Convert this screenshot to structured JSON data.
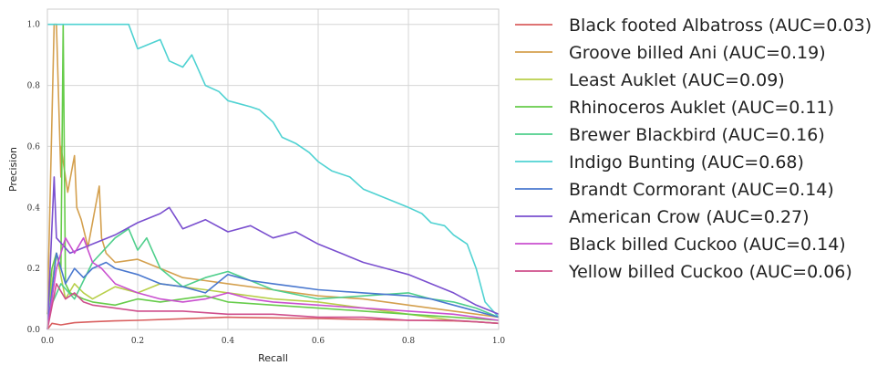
{
  "chart_data": {
    "type": "line",
    "xlabel": "Recall",
    "ylabel": "Precision",
    "xlim": [
      0.0,
      1.0
    ],
    "ylim": [
      0.0,
      1.05
    ],
    "xticks": [
      "0.0",
      "0.2",
      "0.4",
      "0.6",
      "0.8",
      "1.0"
    ],
    "yticks": [
      "0.0",
      "0.2",
      "0.4",
      "0.6",
      "0.8",
      "1.0"
    ],
    "grid": true,
    "legend_position": "outside-right",
    "series": [
      {
        "name": "Black footed Albatross (AUC=0.03)",
        "color": "#d95f5f",
        "x": [
          0.0,
          0.01,
          0.03,
          0.06,
          0.1,
          0.15,
          0.2,
          0.3,
          0.4,
          0.5,
          0.6,
          0.7,
          0.8,
          0.9,
          0.95,
          1.0
        ],
        "y": [
          0.0,
          0.02,
          0.015,
          0.022,
          0.025,
          0.028,
          0.03,
          0.035,
          0.04,
          0.038,
          0.036,
          0.033,
          0.03,
          0.028,
          0.025,
          0.02
        ]
      },
      {
        "name": "Groove billed Ani (AUC=0.19)",
        "color": "#d4a04e",
        "x": [
          0.0,
          0.015,
          0.02,
          0.03,
          0.03,
          0.045,
          0.06,
          0.065,
          0.075,
          0.09,
          0.115,
          0.12,
          0.13,
          0.15,
          0.2,
          0.25,
          0.3,
          0.35,
          0.4,
          0.5,
          0.6,
          0.7,
          0.8,
          0.9,
          1.0
        ],
        "y": [
          0.05,
          1.0,
          1.0,
          0.5,
          0.6,
          0.45,
          0.57,
          0.4,
          0.36,
          0.27,
          0.47,
          0.3,
          0.25,
          0.22,
          0.23,
          0.2,
          0.17,
          0.16,
          0.15,
          0.13,
          0.11,
          0.1,
          0.08,
          0.06,
          0.04
        ]
      },
      {
        "name": "Least Auklet (AUC=0.09)",
        "color": "#b8cf4a",
        "x": [
          0.0,
          0.02,
          0.04,
          0.06,
          0.08,
          0.1,
          0.15,
          0.2,
          0.25,
          0.3,
          0.35,
          0.4,
          0.5,
          0.6,
          0.7,
          0.8,
          0.9,
          1.0
        ],
        "y": [
          0.05,
          0.25,
          0.1,
          0.15,
          0.12,
          0.1,
          0.14,
          0.12,
          0.15,
          0.14,
          0.13,
          0.12,
          0.1,
          0.09,
          0.07,
          0.05,
          0.03,
          0.02
        ]
      },
      {
        "name": "Rhinoceros Auklet (AUC=0.11)",
        "color": "#66cc4a",
        "x": [
          0.0,
          0.01,
          0.02,
          0.03,
          0.035,
          0.04,
          0.05,
          0.08,
          0.1,
          0.15,
          0.2,
          0.25,
          0.3,
          0.35,
          0.4,
          0.5,
          0.6,
          0.7,
          0.8,
          0.9,
          1.0
        ],
        "y": [
          0.05,
          0.2,
          0.25,
          0.2,
          1.0,
          0.15,
          0.12,
          0.1,
          0.09,
          0.08,
          0.1,
          0.09,
          0.1,
          0.11,
          0.09,
          0.08,
          0.07,
          0.06,
          0.05,
          0.04,
          0.03
        ]
      },
      {
        "name": "Brewer Blackbird (AUC=0.16)",
        "color": "#4fcf8c",
        "x": [
          0.0,
          0.03,
          0.06,
          0.1,
          0.15,
          0.18,
          0.2,
          0.22,
          0.25,
          0.3,
          0.35,
          0.4,
          0.5,
          0.6,
          0.7,
          0.8,
          0.85,
          0.9,
          0.95,
          1.0
        ],
        "y": [
          0.05,
          0.15,
          0.1,
          0.22,
          0.3,
          0.33,
          0.26,
          0.3,
          0.2,
          0.14,
          0.17,
          0.19,
          0.13,
          0.1,
          0.11,
          0.12,
          0.1,
          0.09,
          0.07,
          0.04
        ]
      },
      {
        "name": "Indigo Bunting (AUC=0.68)",
        "color": "#4fd2d2",
        "x": [
          0.0,
          0.01,
          0.18,
          0.2,
          0.25,
          0.27,
          0.3,
          0.32,
          0.35,
          0.38,
          0.4,
          0.45,
          0.47,
          0.5,
          0.52,
          0.55,
          0.58,
          0.6,
          0.63,
          0.67,
          0.7,
          0.75,
          0.8,
          0.83,
          0.85,
          0.88,
          0.9,
          0.93,
          0.95,
          0.97,
          1.0
        ],
        "y": [
          1.0,
          1.0,
          1.0,
          0.92,
          0.95,
          0.88,
          0.86,
          0.9,
          0.8,
          0.78,
          0.75,
          0.73,
          0.72,
          0.68,
          0.63,
          0.61,
          0.58,
          0.55,
          0.52,
          0.5,
          0.46,
          0.43,
          0.4,
          0.38,
          0.35,
          0.34,
          0.31,
          0.28,
          0.2,
          0.09,
          0.04
        ]
      },
      {
        "name": "Brandt Cormorant (AUC=0.14)",
        "color": "#4a78cf",
        "x": [
          0.0,
          0.02,
          0.04,
          0.06,
          0.08,
          0.1,
          0.13,
          0.15,
          0.2,
          0.25,
          0.3,
          0.35,
          0.4,
          0.45,
          0.5,
          0.55,
          0.6,
          0.7,
          0.8,
          0.85,
          0.9,
          1.0
        ],
        "y": [
          0.0,
          0.25,
          0.15,
          0.2,
          0.17,
          0.2,
          0.22,
          0.2,
          0.18,
          0.15,
          0.14,
          0.12,
          0.18,
          0.16,
          0.15,
          0.14,
          0.13,
          0.12,
          0.11,
          0.1,
          0.08,
          0.04
        ]
      },
      {
        "name": "American Crow (AUC=0.27)",
        "color": "#7a4fcf",
        "x": [
          0.0,
          0.015,
          0.02,
          0.05,
          0.1,
          0.15,
          0.2,
          0.25,
          0.27,
          0.3,
          0.35,
          0.4,
          0.45,
          0.5,
          0.55,
          0.6,
          0.65,
          0.7,
          0.75,
          0.8,
          0.85,
          0.9,
          0.95,
          1.0
        ],
        "y": [
          0.0,
          0.5,
          0.3,
          0.25,
          0.28,
          0.31,
          0.35,
          0.38,
          0.4,
          0.33,
          0.36,
          0.32,
          0.34,
          0.3,
          0.32,
          0.28,
          0.25,
          0.22,
          0.2,
          0.18,
          0.15,
          0.12,
          0.08,
          0.05
        ]
      },
      {
        "name": "Black billed Cuckoo (AUC=0.14)",
        "color": "#c94fcf",
        "x": [
          0.0,
          0.02,
          0.04,
          0.06,
          0.08,
          0.1,
          0.12,
          0.15,
          0.2,
          0.25,
          0.3,
          0.35,
          0.4,
          0.45,
          0.5,
          0.6,
          0.7,
          0.8,
          0.9,
          1.0
        ],
        "y": [
          0.0,
          0.2,
          0.3,
          0.25,
          0.3,
          0.22,
          0.2,
          0.15,
          0.12,
          0.1,
          0.09,
          0.1,
          0.12,
          0.1,
          0.09,
          0.08,
          0.07,
          0.06,
          0.05,
          0.03
        ]
      },
      {
        "name": "Yellow billed Cuckoo (AUC=0.06)",
        "color": "#cf4f8c",
        "x": [
          0.0,
          0.02,
          0.04,
          0.06,
          0.08,
          0.1,
          0.15,
          0.2,
          0.3,
          0.4,
          0.5,
          0.6,
          0.7,
          0.8,
          0.9,
          1.0
        ],
        "y": [
          0.0,
          0.15,
          0.1,
          0.12,
          0.09,
          0.08,
          0.07,
          0.06,
          0.06,
          0.05,
          0.05,
          0.04,
          0.04,
          0.03,
          0.03,
          0.02
        ]
      }
    ]
  }
}
